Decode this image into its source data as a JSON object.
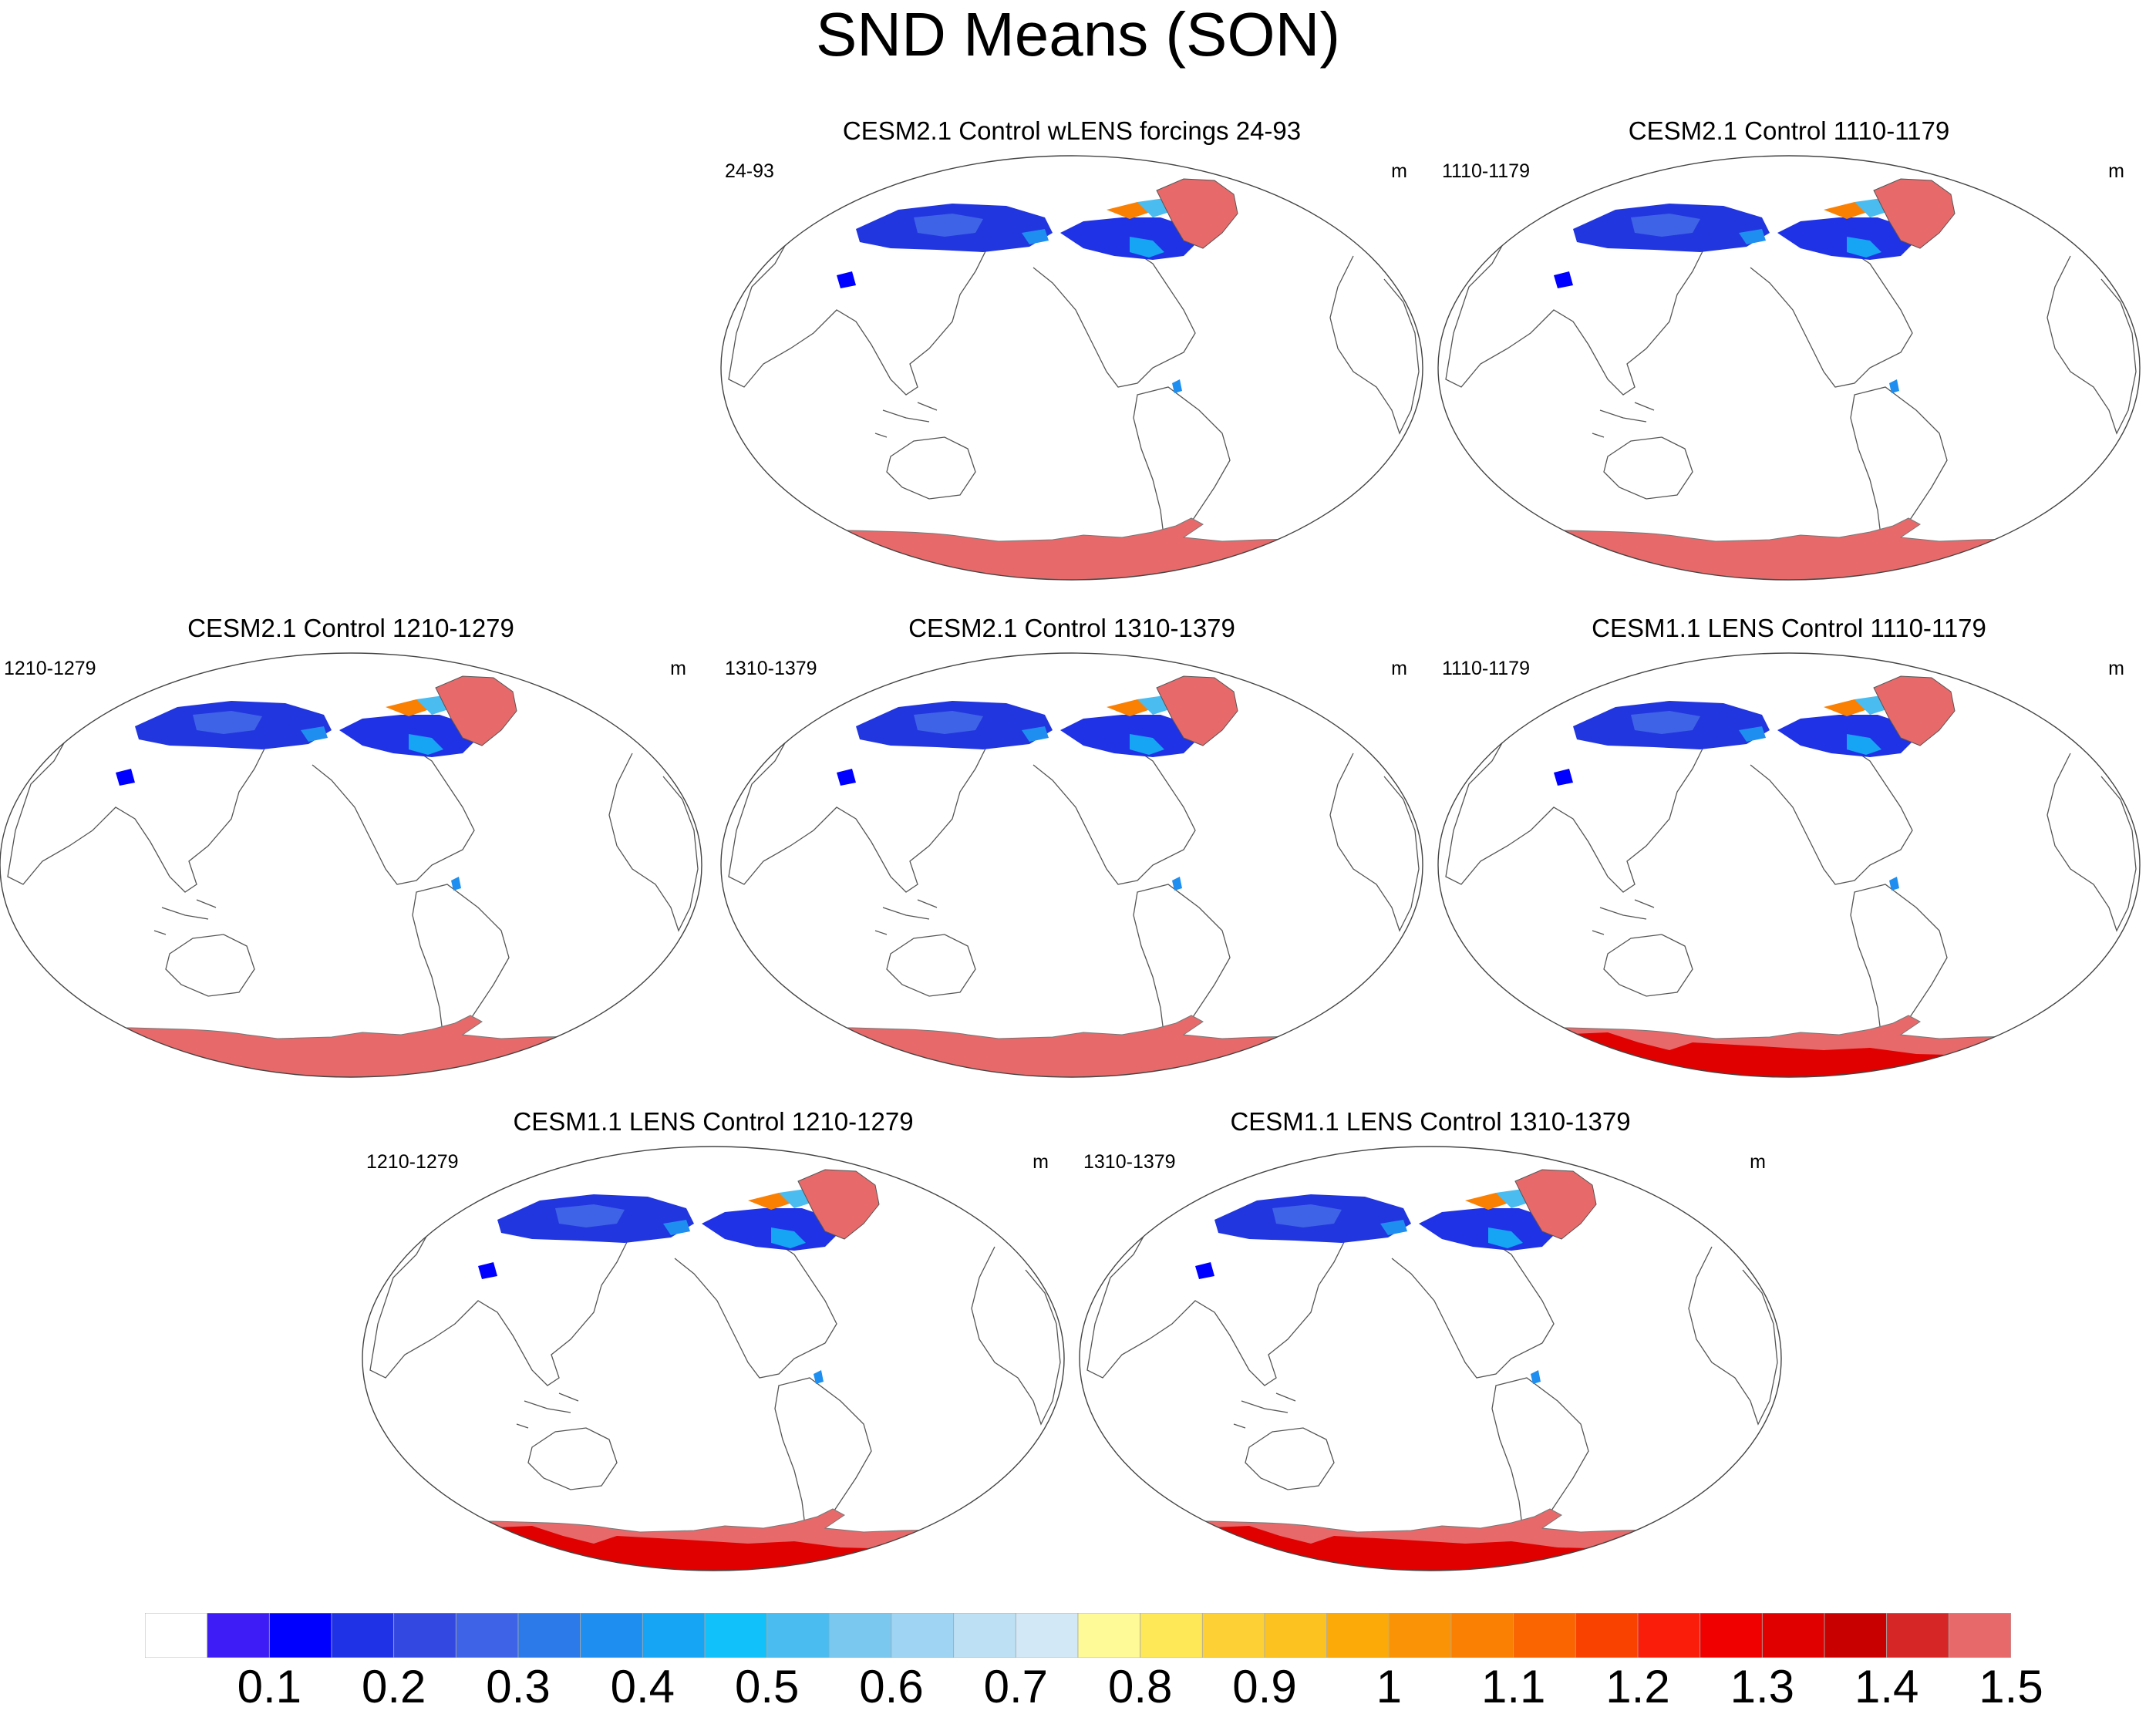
{
  "title": "SND Means (SON)",
  "units": "m",
  "panels": [
    {
      "title": "CESM2.1 Control wLENS forcings 24-93",
      "left_label": "24-93",
      "right_label": "m",
      "greenland_color": "#e8696a",
      "antarctica_deep": false
    },
    {
      "title": "CESM2.1 Control 1110-1179",
      "left_label": "1110-1179",
      "right_label": "m",
      "greenland_color": "#e8696a",
      "antarctica_deep": false
    },
    {
      "title": "CESM2.1 Control 1210-1279",
      "left_label": "1210-1279",
      "right_label": "m",
      "greenland_color": "#e8696a",
      "antarctica_deep": false
    },
    {
      "title": "CESM2.1 Control 1310-1379",
      "left_label": "1310-1379",
      "right_label": "m",
      "greenland_color": "#e8696a",
      "antarctica_deep": false
    },
    {
      "title": "CESM1.1 LENS Control 1110-1179",
      "left_label": "1110-1179",
      "right_label": "m",
      "greenland_color": "#e8696a",
      "antarctica_deep": true
    },
    {
      "title": "CESM1.1 LENS Control 1210-1279",
      "left_label": "1210-1279",
      "right_label": "m",
      "greenland_color": "#e8696a",
      "antarctica_deep": true
    },
    {
      "title": "CESM1.1 LENS Control 1310-1379",
      "left_label": "1310-1379",
      "right_label": "m",
      "greenland_color": "#e8696a",
      "antarctica_deep": true
    }
  ],
  "chart_data": {
    "type": "heatmap",
    "title": "SND Means (SON)",
    "units": "m",
    "colorbar": {
      "levels": [
        "0.1",
        "0.2",
        "0.3",
        "0.4",
        "0.5",
        "0.6",
        "0.7",
        "0.8",
        "0.9",
        "1",
        "1.1",
        "1.2",
        "1.3",
        "1.4",
        "1.5"
      ],
      "colors": [
        "#ffffff",
        "#3d1cf5",
        "#0000ff",
        "#1f32e6",
        "#3348e0",
        "#3f63e6",
        "#2c79ea",
        "#1e8ff0",
        "#16a4f4",
        "#10c1fa",
        "#4bbcf0",
        "#7ac7f0",
        "#9fd4f2",
        "#bde0f4",
        "#d2e8f6",
        "#fefa97",
        "#fee857",
        "#fdd136",
        "#fbc220",
        "#fbaa08",
        "#fa9406",
        "#fa8004",
        "#fa6502",
        "#fa4200",
        "#fa1e0a",
        "#f10000",
        "#e00000",
        "#c80000",
        "#d72626",
        "#e8696a"
      ]
    }
  }
}
